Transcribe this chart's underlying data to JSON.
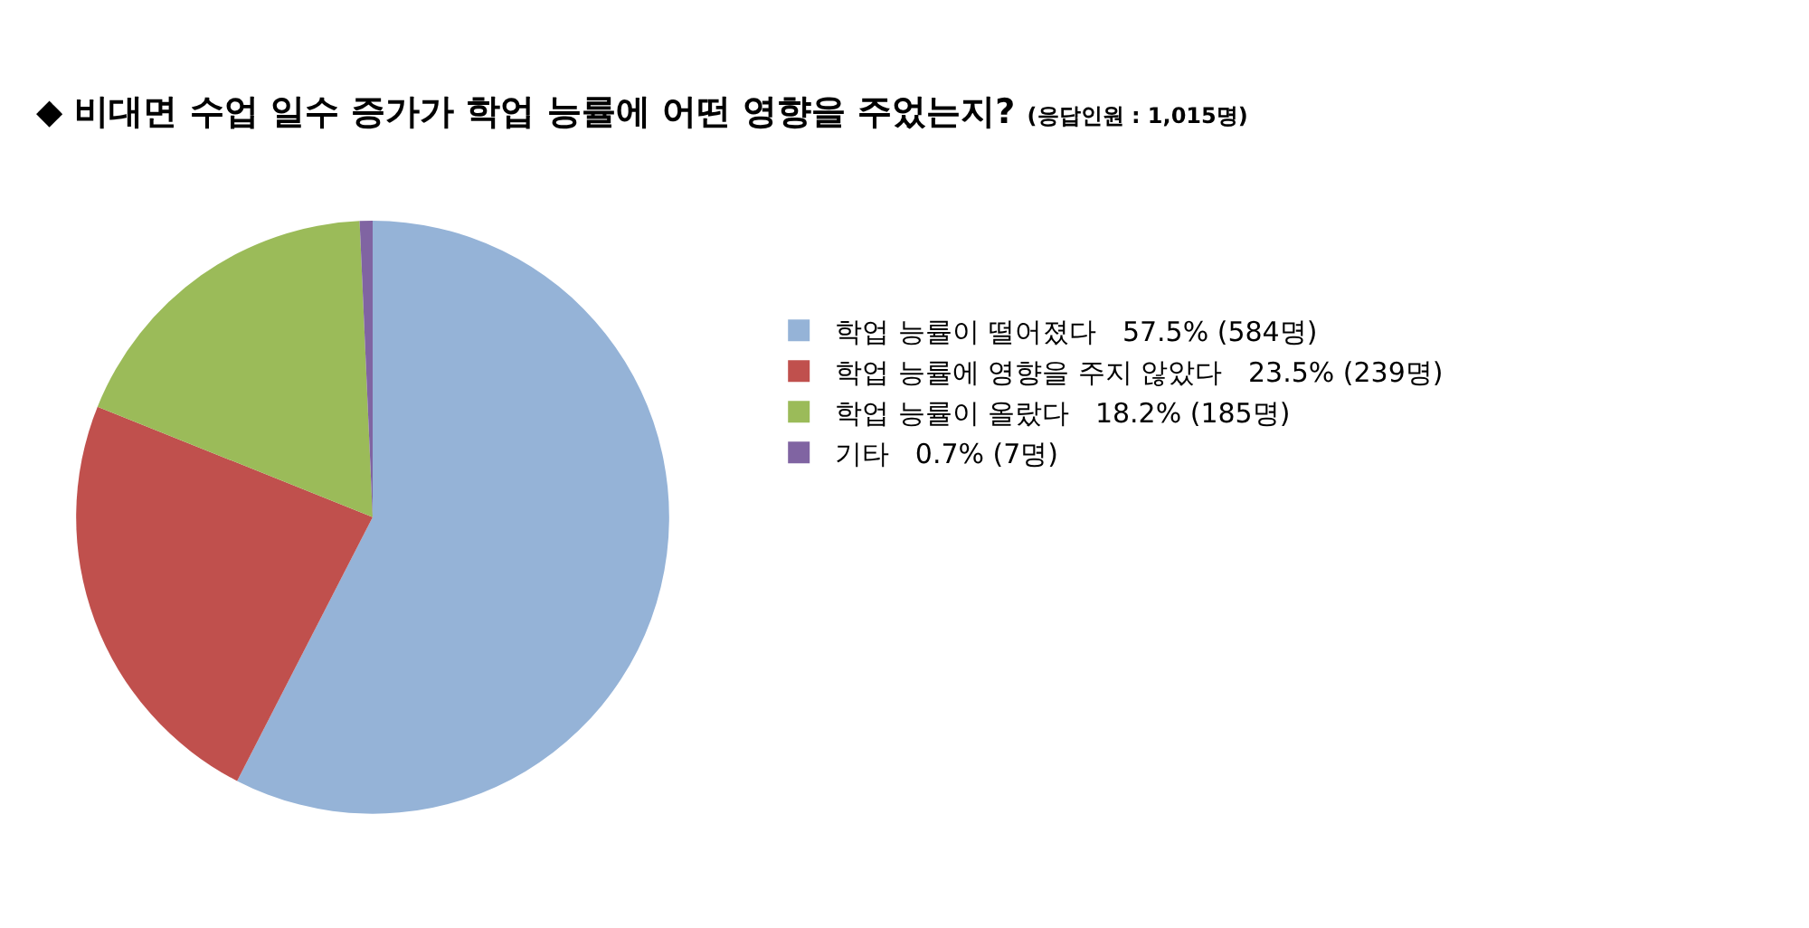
{
  "chart_data": {
    "type": "pie",
    "title": "◆ 비대면 수업 일수 증가가 학업 능률에 어떤 영향을 주었는지?",
    "subtitle": "(응답인원 : 1,015명)",
    "categories": [
      "학업 능률이 떨어졌다",
      "학업 능률에 영향을 주지 않았다",
      "학업 능률이 올랐다",
      "기타"
    ],
    "values": [
      57.5,
      23.5,
      18.2,
      0.7
    ],
    "colors": [
      "#95b3d7",
      "#c0504d",
      "#9bbb59",
      "#8064a2"
    ],
    "value_labels": [
      "57.5% (584명)",
      "23.5% (239명)",
      "18.2% (185명)",
      "0.7% (7명)"
    ],
    "legend": "right"
  }
}
